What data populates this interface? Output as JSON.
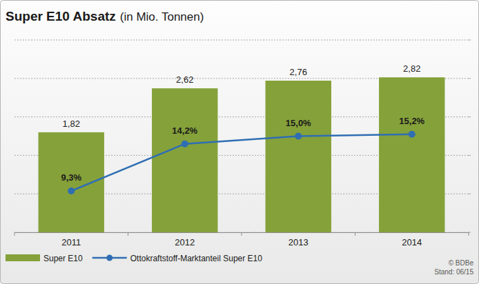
{
  "chart_data": {
    "type": "bar",
    "title": "Super E10 Absatz",
    "subtitle": "(in Mio. Tonnen)",
    "categories": [
      "2011",
      "2012",
      "2013",
      "2014"
    ],
    "series": [
      {
        "name": "Super E10",
        "type": "bar",
        "color": "#85a13a",
        "values": [
          1.82,
          2.62,
          2.76,
          2.82
        ],
        "value_labels": [
          "1,82",
          "2,62",
          "2,76",
          "2,82"
        ]
      },
      {
        "name": "Ottokraftstoff-Marktanteil Super E10",
        "type": "line",
        "axis": "y2",
        "color": "#2f6eb3",
        "marker": "circle",
        "values": [
          9.3,
          14.2,
          15.0,
          15.2
        ],
        "value_labels": [
          "9,3%",
          "14,2%",
          "15,0%",
          "15,2%"
        ]
      }
    ],
    "ylim": [
      0,
      3.5
    ],
    "yticks": [
      0,
      0.7,
      1.4,
      2.1,
      2.8,
      3.5
    ],
    "y2lim": [
      5,
      25
    ],
    "y2ticks": [
      5,
      9,
      13,
      17,
      21,
      25
    ],
    "grid": true,
    "tick_labels": "x",
    "data_labels": true,
    "legend": "bottom-left",
    "annotations": [
      "© BDBe",
      "Stand: 06/15"
    ]
  }
}
